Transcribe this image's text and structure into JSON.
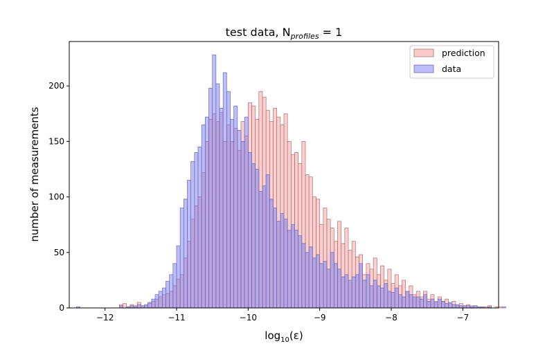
{
  "chart_data": {
    "type": "bar",
    "title": "test data, N",
    "title_subscript": "profiles",
    "title_suffix": " = 1",
    "xlabel": "log",
    "xlabel_subscript": "10",
    "xlabel_suffix": "(ε)",
    "ylabel": "number of measurements",
    "xlim": [
      -12.5,
      -6.5
    ],
    "ylim": [
      0,
      240
    ],
    "xticks": [
      -12,
      -11,
      -10,
      -9,
      -8,
      -7
    ],
    "xtick_labels": [
      "−12",
      "−11",
      "−10",
      "−9",
      "−8",
      "−7"
    ],
    "yticks": [
      0,
      50,
      100,
      150,
      200
    ],
    "grid": false,
    "legend_position": "top-right",
    "bin_start": -12.4,
    "bin_width": 0.05,
    "series": [
      {
        "name": "prediction",
        "color": "#f08080",
        "edge": "#b07070",
        "values": [
          0,
          0,
          0,
          0,
          0,
          0,
          0,
          0,
          0,
          0,
          0,
          0,
          3,
          4,
          1,
          3,
          2,
          5,
          2,
          2,
          4,
          6,
          8,
          10,
          12,
          13,
          15,
          20,
          26,
          30,
          45,
          60,
          80,
          92,
          100,
          122,
          150,
          170,
          175,
          168,
          176,
          150,
          165,
          150,
          162,
          142,
          168,
          155,
          185,
          182,
          170,
          195,
          190,
          178,
          168,
          180,
          172,
          165,
          175,
          150,
          138,
          140,
          130,
          150,
          120,
          118,
          100,
          98,
          75,
          90,
          80,
          72,
          60,
          78,
          58,
          72,
          52,
          60,
          46,
          48,
          30,
          40,
          35,
          45,
          30,
          38,
          25,
          35,
          22,
          30,
          20,
          25,
          15,
          20,
          12,
          15,
          10,
          15,
          8,
          12,
          6,
          10,
          5,
          8,
          4,
          6,
          2,
          4,
          2,
          3,
          2,
          2,
          1,
          1,
          1,
          2,
          0,
          1,
          1,
          0,
          0
        ]
      },
      {
        "name": "data",
        "color": "#7b7bf0",
        "edge": "#6a6ab8",
        "values": [
          1,
          0,
          0,
          0,
          0,
          0,
          0,
          0,
          0,
          0,
          0,
          0,
          2,
          0,
          1,
          2,
          1,
          3,
          2,
          3,
          5,
          8,
          12,
          15,
          18,
          24,
          30,
          40,
          56,
          90,
          98,
          115,
          132,
          140,
          145,
          165,
          172,
          198,
          228,
          202,
          180,
          212,
          195,
          170,
          182,
          160,
          150,
          172,
          140,
          130,
          125,
          105,
          110,
          120,
          98,
          90,
          78,
          85,
          80,
          70,
          75,
          70,
          65,
          58,
          50,
          55,
          45,
          48,
          40,
          42,
          35,
          50,
          40,
          35,
          28,
          30,
          25,
          28,
          30,
          40,
          25,
          30,
          20,
          25,
          20,
          18,
          22,
          15,
          14,
          18,
          12,
          10,
          15,
          12,
          10,
          10,
          8,
          12,
          6,
          8,
          5,
          8,
          6,
          4,
          5,
          3,
          3,
          2,
          2,
          2,
          1,
          2,
          1,
          1,
          0,
          1,
          0,
          0,
          0,
          1,
          0
        ]
      }
    ]
  }
}
